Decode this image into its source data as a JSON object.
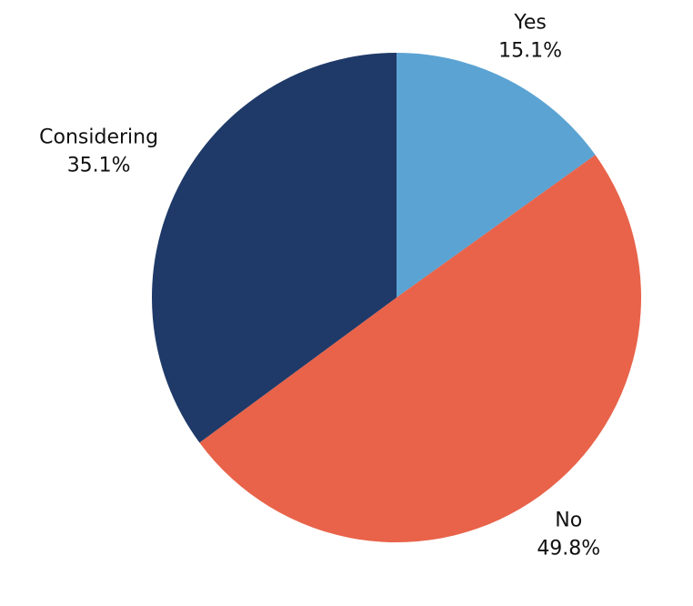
{
  "chart_data": {
    "type": "pie",
    "categories": [
      "Yes",
      "No",
      "Considering"
    ],
    "values": [
      15.1,
      49.8,
      35.1
    ],
    "value_labels": [
      "15.1%",
      "49.8%",
      "35.1%"
    ],
    "colors": [
      "#5ba3d3",
      "#e8634a",
      "#1f3a68"
    ]
  }
}
